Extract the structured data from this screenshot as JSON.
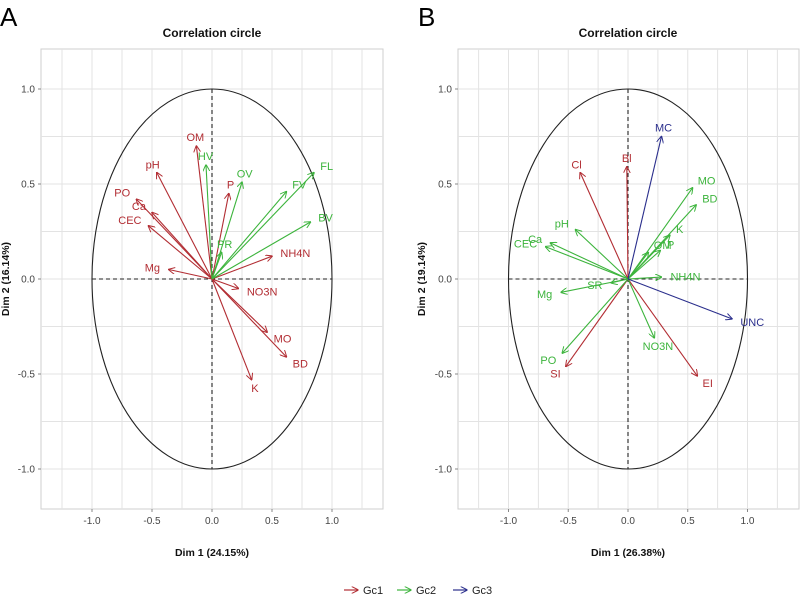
{
  "legend": {
    "position": "bottom-center",
    "items": [
      {
        "name": "Gc1",
        "color": "#b22d33"
      },
      {
        "name": "Gc2",
        "color": "#3cb43c"
      },
      {
        "name": "Gc3",
        "color": "#2a2e8c"
      }
    ]
  },
  "chart_data": [
    {
      "type": "scatter",
      "subtype": "pca-variable-correlation-circle",
      "panel_letter": "A",
      "title": "Correlation circle",
      "xlabel": "Dim 1 (24.15%)",
      "ylabel": "Dim 2 (16.14%)",
      "xlim": [
        -1.4,
        1.4
      ],
      "ylim": [
        -1.2,
        1.2
      ],
      "xticks": [
        "-1.0",
        "-0.5",
        "0.0",
        "0.5",
        "1.0"
      ],
      "yticks": [
        "-1.0",
        "-0.5",
        "0.0",
        "0.5",
        "1.0"
      ],
      "xtick_values": [
        -1.0,
        -0.5,
        0.0,
        0.5,
        1.0
      ],
      "ytick_values": [
        -1.0,
        -0.5,
        0.0,
        0.5,
        1.0
      ],
      "grid": true,
      "unit_circle": true,
      "series": [
        {
          "name": "Gc1",
          "color": "#b22d33",
          "vectors": [
            {
              "label": "OM",
              "x": -0.13,
              "y": 0.7
            },
            {
              "label": "pH",
              "x": -0.46,
              "y": 0.56
            },
            {
              "label": "PO",
              "x": -0.63,
              "y": 0.42
            },
            {
              "label": "Ca",
              "x": -0.5,
              "y": 0.35
            },
            {
              "label": "CEC",
              "x": -0.53,
              "y": 0.28
            },
            {
              "label": "Mg",
              "x": -0.36,
              "y": 0.05
            },
            {
              "label": "P",
              "x": 0.14,
              "y": 0.45
            },
            {
              "label": "NH4N",
              "x": 0.5,
              "y": 0.12
            },
            {
              "label": "NO3N",
              "x": 0.22,
              "y": -0.05
            },
            {
              "label": "MO",
              "x": 0.46,
              "y": -0.28
            },
            {
              "label": "BD",
              "x": 0.62,
              "y": -0.41
            },
            {
              "label": "K",
              "x": 0.33,
              "y": -0.53
            }
          ]
        },
        {
          "name": "Gc2",
          "color": "#3cb43c",
          "vectors": [
            {
              "label": "HV",
              "x": -0.05,
              "y": 0.6
            },
            {
              "label": "OV",
              "x": 0.25,
              "y": 0.51
            },
            {
              "label": "FV",
              "x": 0.62,
              "y": 0.46
            },
            {
              "label": "FL",
              "x": 0.85,
              "y": 0.56
            },
            {
              "label": "BV",
              "x": 0.82,
              "y": 0.3
            },
            {
              "label": "PR",
              "x": 0.08,
              "y": 0.14
            }
          ]
        }
      ]
    },
    {
      "type": "scatter",
      "subtype": "pca-variable-correlation-circle",
      "panel_letter": "B",
      "title": "Correlation circle",
      "xlabel": "Dim 1 (26.38%)",
      "ylabel": "Dim 2 (19.14%)",
      "xlim": [
        -1.4,
        1.4
      ],
      "ylim": [
        -1.2,
        1.2
      ],
      "xticks": [
        "-1.0",
        "-0.5",
        "0.0",
        "0.5",
        "1.0"
      ],
      "yticks": [
        "-1.0",
        "-0.5",
        "0.0",
        "0.5",
        "1.0"
      ],
      "xtick_values": [
        -1.0,
        -0.5,
        0.0,
        0.5,
        1.0
      ],
      "ytick_values": [
        -1.0,
        -0.5,
        0.0,
        0.5,
        1.0
      ],
      "grid": true,
      "unit_circle": true,
      "series": [
        {
          "name": "Gc1",
          "color": "#b22d33",
          "vectors": [
            {
              "label": "Cl",
              "x": -0.4,
              "y": 0.56
            },
            {
              "label": "Bl",
              "x": -0.01,
              "y": 0.59
            },
            {
              "label": "SI",
              "x": -0.52,
              "y": -0.46
            },
            {
              "label": "EI",
              "x": 0.58,
              "y": -0.51
            }
          ]
        },
        {
          "name": "Gc2",
          "color": "#3cb43c",
          "vectors": [
            {
              "label": "MO",
              "x": 0.54,
              "y": 0.48
            },
            {
              "label": "BD",
              "x": 0.57,
              "y": 0.39
            },
            {
              "label": "K",
              "x": 0.35,
              "y": 0.23
            },
            {
              "label": "P",
              "x": 0.27,
              "y": 0.15
            },
            {
              "label": "OM",
              "x": 0.17,
              "y": 0.14
            },
            {
              "label": "pH",
              "x": -0.44,
              "y": 0.26
            },
            {
              "label": "Ca",
              "x": -0.65,
              "y": 0.19
            },
            {
              "label": "CEC",
              "x": -0.69,
              "y": 0.17
            },
            {
              "label": "NH4N",
              "x": 0.28,
              "y": 0.01
            },
            {
              "label": "SR",
              "x": -0.14,
              "y": -0.02
            },
            {
              "label": "Mg",
              "x": -0.56,
              "y": -0.07
            },
            {
              "label": "NO3N",
              "x": 0.22,
              "y": -0.31
            },
            {
              "label": "PO",
              "x": -0.55,
              "y": -0.39
            }
          ]
        },
        {
          "name": "Gc3",
          "color": "#2a2e8c",
          "vectors": [
            {
              "label": "MC",
              "x": 0.28,
              "y": 0.75
            },
            {
              "label": "UNC",
              "x": 0.87,
              "y": -0.21
            }
          ]
        }
      ]
    }
  ]
}
